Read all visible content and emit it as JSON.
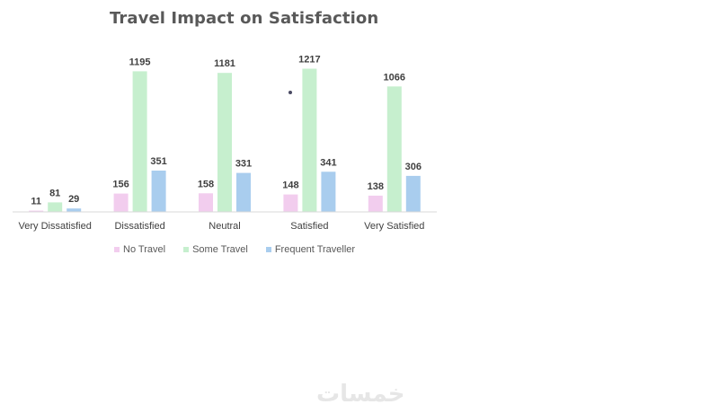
{
  "chart_data": {
    "type": "bar",
    "title": "Travel Impact on Satisfaction",
    "categories": [
      "Very Dissatisfied",
      "Dissatisfied",
      "Neutral",
      "Satisfied",
      "Very Satisfied"
    ],
    "series": [
      {
        "name": "No Travel",
        "color": "#f2cdee",
        "values": [
          11,
          156,
          158,
          148,
          138
        ]
      },
      {
        "name": "Some Travel",
        "color": "#c6efce",
        "values": [
          81,
          1195,
          1181,
          1217,
          1066
        ]
      },
      {
        "name": "Frequent Traveller",
        "color": "#a9cdee",
        "values": [
          29,
          351,
          331,
          341,
          306
        ]
      }
    ],
    "ylim": [
      0,
      1250
    ],
    "xlabel": "",
    "ylabel": "",
    "legend_position": "bottom",
    "grid": false
  },
  "watermark": "خمسات"
}
